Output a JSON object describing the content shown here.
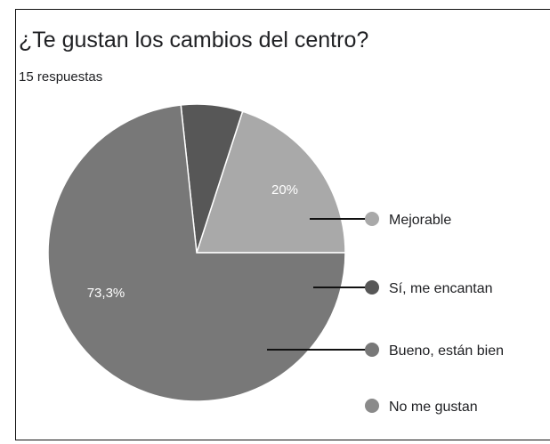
{
  "chart_data": {
    "type": "pie",
    "title": "¿Te gustan los cambios del centro?",
    "subtitle": "15 respuestas",
    "categories": [
      "Mejorable",
      "Sí, me encantan",
      "Bueno, están bien",
      "No me gustan"
    ],
    "values": [
      20,
      6.7,
      73.3,
      0
    ],
    "value_labels": [
      "20%",
      "",
      "73,3%",
      ""
    ],
    "colors": [
      "#a9a9a9",
      "#575757",
      "#787878",
      "#8a8a8a"
    ],
    "legend_position": "right",
    "start_angle_deg": 0,
    "direction": "counterclockwise"
  }
}
